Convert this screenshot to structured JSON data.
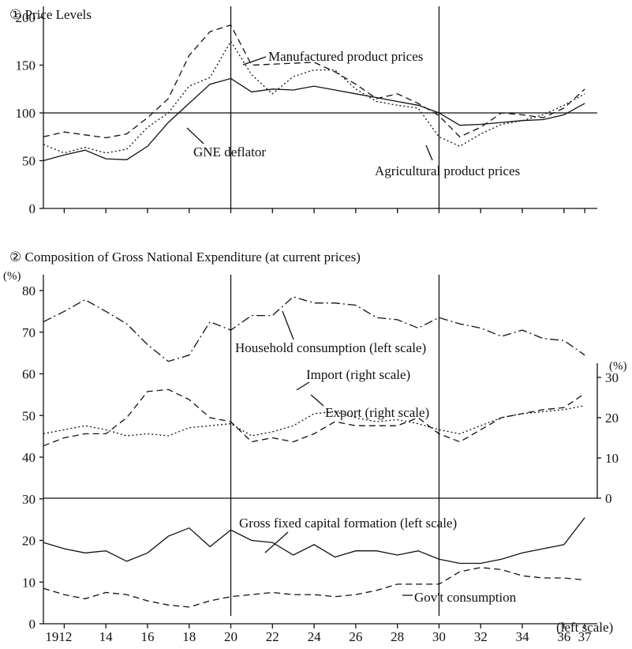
{
  "chart_data": [
    {
      "type": "line",
      "title": "① Price Levels",
      "x": [
        1911,
        1912,
        1913,
        1914,
        1915,
        1916,
        1917,
        1918,
        1919,
        1920,
        1921,
        1922,
        1923,
        1924,
        1925,
        1926,
        1927,
        1928,
        1929,
        1930,
        1931,
        1932,
        1933,
        1934,
        1935,
        1936,
        1937
      ],
      "xlim": [
        1911,
        1937.6
      ],
      "ylim": [
        0,
        200
      ],
      "yticks": [
        0,
        50,
        100,
        150,
        200
      ],
      "hline": 100,
      "vlines": [
        1920,
        1930
      ],
      "series": [
        {
          "name": "Manufactured product prices",
          "color": "#111",
          "style": "dashed",
          "values": [
            75,
            80,
            77,
            74,
            78,
            95,
            115,
            160,
            185,
            192,
            150,
            151,
            152,
            153,
            143,
            130,
            115,
            120,
            110,
            97,
            75,
            85,
            100,
            98,
            95,
            105,
            125
          ]
        },
        {
          "name": "GNE deflator",
          "color": "#111",
          "style": "solid",
          "values": [
            50,
            56,
            61,
            52,
            51,
            65,
            90,
            110,
            130,
            136,
            122,
            125,
            124,
            128,
            124,
            120,
            116,
            112,
            108,
            100,
            87,
            88,
            90,
            92,
            93,
            98,
            110
          ]
        },
        {
          "name": "Agricultural product prices",
          "color": "#111",
          "style": "dotted",
          "values": [
            67,
            58,
            64,
            58,
            62,
            85,
            100,
            128,
            137,
            175,
            140,
            120,
            138,
            145,
            145,
            125,
            112,
            108,
            105,
            75,
            65,
            78,
            88,
            92,
            98,
            108,
            120
          ]
        }
      ]
    },
    {
      "type": "line",
      "title": "② Composition of Gross National Expenditure (at current prices)",
      "y_label": "(%)",
      "y2_label": "(%)",
      "x": [
        1911,
        1912,
        1913,
        1914,
        1915,
        1916,
        1917,
        1918,
        1919,
        1920,
        1921,
        1922,
        1923,
        1924,
        1925,
        1926,
        1927,
        1928,
        1929,
        1930,
        1931,
        1932,
        1933,
        1934,
        1935,
        1936,
        1937
      ],
      "xlim": [
        1911,
        1937.6
      ],
      "xticks": [
        1912,
        {
          "value": 1914,
          "label": "14"
        },
        {
          "value": 1916,
          "label": "16"
        },
        {
          "value": 1918,
          "label": "18"
        },
        {
          "value": 1920,
          "label": "20"
        },
        {
          "value": 1922,
          "label": "22"
        },
        {
          "value": 1924,
          "label": "24"
        },
        {
          "value": 1926,
          "label": "26"
        },
        {
          "value": 1928,
          "label": "28"
        },
        {
          "value": 1930,
          "label": "30"
        },
        {
          "value": 1932,
          "label": "32"
        },
        {
          "value": 1934,
          "label": "34"
        },
        {
          "value": 1936,
          "label": "36"
        },
        {
          "value": 1937,
          "label": "37"
        }
      ],
      "ylim": [
        0,
        80
      ],
      "yticks": [
        0,
        10,
        20,
        30,
        40,
        50,
        60,
        70,
        80
      ],
      "y2lim": [
        0,
        30
      ],
      "y2ticks": [
        0,
        10,
        20,
        30
      ],
      "vlines": [
        1920,
        1930
      ],
      "series": [
        {
          "name": "Household consumption (left scale)",
          "color": "#111",
          "style": "dashdot",
          "values": [
            72.5,
            75,
            77.8,
            75,
            72,
            67,
            63,
            64.5,
            72.5,
            70.5,
            74,
            74,
            78.5,
            77,
            77,
            76.5,
            73.5,
            73,
            71,
            73.5,
            72,
            71,
            69,
            70.5,
            68.5,
            68,
            64.5
          ]
        },
        {
          "name": "Import (right scale)",
          "color": "#111",
          "style": "dotted",
          "axis": "y2",
          "values": [
            16,
            17,
            18,
            17,
            15.5,
            16,
            15.5,
            17.5,
            18,
            18.5,
            15.5,
            16.5,
            18,
            21,
            21.5,
            20,
            19,
            19.5,
            18.5,
            17,
            16,
            18,
            20,
            21,
            21.5,
            22,
            23
          ]
        },
        {
          "name": "Export (right scale)",
          "color": "#111",
          "style": "dashed",
          "axis": "y2",
          "values": [
            13,
            15,
            16,
            16,
            20,
            26.5,
            27,
            24.5,
            20,
            19,
            14,
            15,
            14,
            16,
            19,
            18,
            18,
            18,
            20,
            16,
            14,
            17,
            20,
            21,
            22,
            22.5,
            26
          ]
        },
        {
          "name": "Gross fixed capital formation (left scale)",
          "color": "#111",
          "style": "solid",
          "values": [
            19.5,
            18,
            17,
            17.5,
            15,
            17,
            21,
            23,
            18.5,
            22.5,
            20,
            19.5,
            16.5,
            19,
            16,
            17.5,
            17.5,
            16.5,
            17.5,
            15.5,
            14.5,
            14.5,
            15.5,
            17,
            18,
            19,
            25.5
          ]
        },
        {
          "name": "Gov't consumption",
          "note": "(left scale)",
          "color": "#111",
          "style": "dashed",
          "values": [
            8.5,
            7,
            6,
            7.5,
            7,
            5.5,
            4.5,
            4,
            5.5,
            6.5,
            7,
            7.5,
            7,
            7,
            6.5,
            7,
            8,
            9.5,
            9.5,
            9.5,
            12.5,
            13.5,
            13,
            11.5,
            11,
            11,
            10.5
          ]
        }
      ]
    }
  ]
}
